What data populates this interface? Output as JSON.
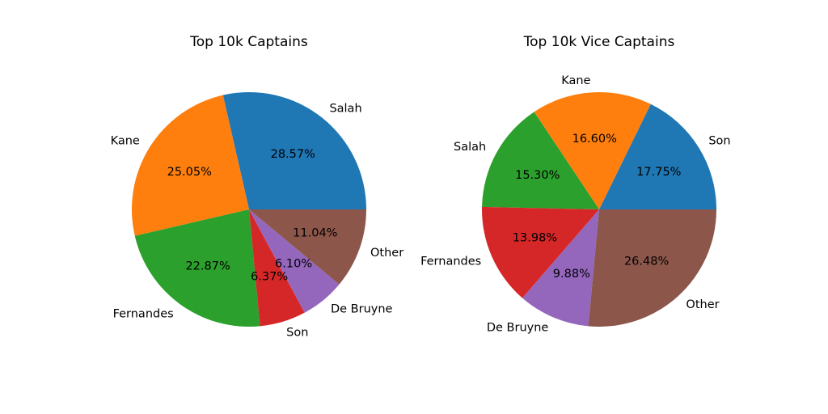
{
  "chart_data": [
    {
      "type": "pie",
      "title": "Top 10k Captains",
      "start_angle": 0,
      "direction": "counterclockwise",
      "slices": [
        {
          "label": "Salah",
          "value": 28.57,
          "pct_label": "28.57%",
          "color": "#1f77b4"
        },
        {
          "label": "Kane",
          "value": 25.05,
          "pct_label": "25.05%",
          "color": "#ff7f0e"
        },
        {
          "label": "Fernandes",
          "value": 22.87,
          "pct_label": "22.87%",
          "color": "#2ca02c"
        },
        {
          "label": "Son",
          "value": 6.37,
          "pct_label": "6.37%",
          "color": "#d62728"
        },
        {
          "label": "De Bruyne",
          "value": 6.1,
          "pct_label": "6.10%",
          "color": "#9467bd"
        },
        {
          "label": "Other",
          "value": 11.04,
          "pct_label": "11.04%",
          "color": "#8c564b"
        }
      ]
    },
    {
      "type": "pie",
      "title": "Top 10k Vice Captains",
      "start_angle": 0,
      "direction": "counterclockwise",
      "slices": [
        {
          "label": "Son",
          "value": 17.75,
          "pct_label": "17.75%",
          "color": "#1f77b4"
        },
        {
          "label": "Kane",
          "value": 16.6,
          "pct_label": "16.60%",
          "color": "#ff7f0e"
        },
        {
          "label": "Salah",
          "value": 15.3,
          "pct_label": "15.30%",
          "color": "#2ca02c"
        },
        {
          "label": "Fernandes",
          "value": 13.98,
          "pct_label": "13.98%",
          "color": "#d62728"
        },
        {
          "label": "De Bruyne",
          "value": 9.88,
          "pct_label": "9.88%",
          "color": "#9467bd"
        },
        {
          "label": "Other",
          "value": 26.48,
          "pct_label": "26.48%",
          "color": "#8c564b"
        }
      ]
    }
  ]
}
